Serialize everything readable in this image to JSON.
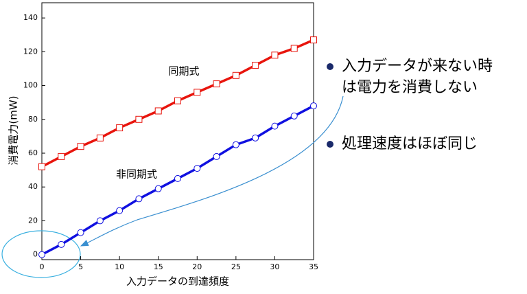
{
  "chart_data": {
    "type": "line",
    "x": [
      0,
      2.5,
      5,
      7.5,
      10,
      12.5,
      15,
      17.5,
      20,
      22.5,
      25,
      27.5,
      30,
      32.5,
      35
    ],
    "series": [
      {
        "name": "同期式",
        "color": "#e8150d",
        "marker": "square",
        "values": [
          52,
          58,
          64,
          69,
          75,
          80,
          85,
          91,
          96,
          101,
          106,
          112,
          118,
          122,
          127
        ]
      },
      {
        "name": "非同期式",
        "color": "#1010e0",
        "marker": "circle",
        "values": [
          0,
          6,
          13,
          20,
          26,
          33,
          39,
          45,
          51,
          58,
          65,
          69,
          76,
          82,
          88
        ]
      }
    ],
    "xlabel": "入力データの到達頻度",
    "ylabel": "消費電力(mW)",
    "xlim": [
      0,
      35
    ],
    "ylim": [
      -3,
      149
    ],
    "xticks": [
      0,
      5,
      10,
      15,
      20,
      25,
      30,
      35
    ],
    "yticks": [
      0,
      20,
      40,
      60,
      80,
      100,
      120,
      140
    ]
  },
  "bullets": [
    [
      "入力データが来ない時",
      "は電力を消費しない"
    ],
    [
      "処理速度はほぼ同じ"
    ]
  ]
}
